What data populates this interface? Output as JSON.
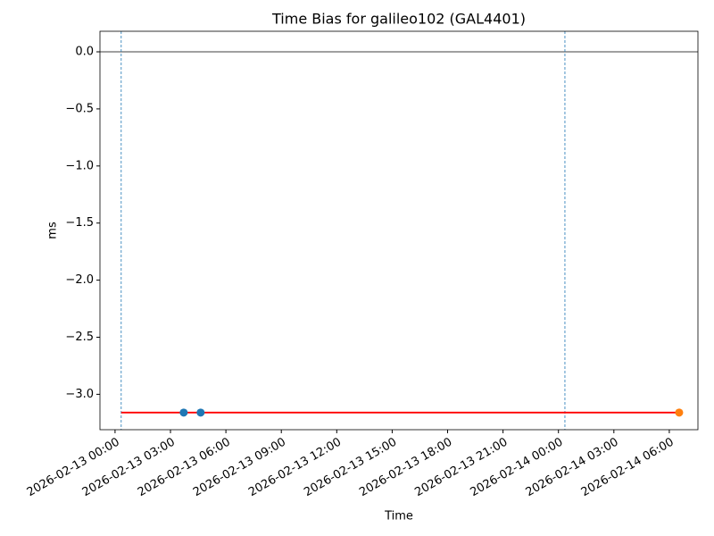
{
  "chart_data": {
    "type": "line",
    "title": "Time Bias for galileo102 (GAL4401)",
    "x_label": "Time",
    "y_label": "ms",
    "xlim": [
      "2026-02-12 23:11",
      "2026-02-14 07:33"
    ],
    "ylim": [
      -3.31,
      0.18
    ],
    "xticks": [
      "2026-02-13 00:00",
      "2026-02-13 03:00",
      "2026-02-13 06:00",
      "2026-02-13 09:00",
      "2026-02-13 12:00",
      "2026-02-13 15:00",
      "2026-02-13 18:00",
      "2026-02-13 21:00",
      "2026-02-14 00:00",
      "2026-02-14 03:00",
      "2026-02-14 06:00"
    ],
    "yticks": [
      {
        "value": -3.0,
        "label": "−3.0"
      },
      {
        "value": -2.5,
        "label": "−2.5"
      },
      {
        "value": -2.0,
        "label": "−2.0"
      },
      {
        "value": -1.5,
        "label": "−1.5"
      },
      {
        "value": -1.0,
        "label": "−1.0"
      },
      {
        "value": -0.5,
        "label": "−0.5"
      },
      {
        "value": 0.0,
        "label": "0.0"
      }
    ],
    "hlines": [
      {
        "value": 0,
        "color": "#000000"
      }
    ],
    "vlines": [
      {
        "x": "2026-02-13 00:20",
        "color": "#1f77b4"
      },
      {
        "x": "2026-02-14 00:21",
        "color": "#1f77b4"
      }
    ],
    "series": [
      {
        "style": "line",
        "color": "#ff0000",
        "x": [
          "2026-02-13 00:20",
          "2026-02-14 06:32"
        ],
        "values": [
          -3.16,
          -3.16
        ]
      },
      {
        "style": "marker",
        "color": "#1f77b4",
        "x": [
          "2026-02-13 03:43",
          "2026-02-13 04:38"
        ],
        "values": [
          -3.16,
          -3.16
        ]
      },
      {
        "style": "marker",
        "color": "#ff7f0e",
        "x": [
          "2026-02-14 06:32"
        ],
        "values": [
          -3.16
        ]
      }
    ]
  }
}
